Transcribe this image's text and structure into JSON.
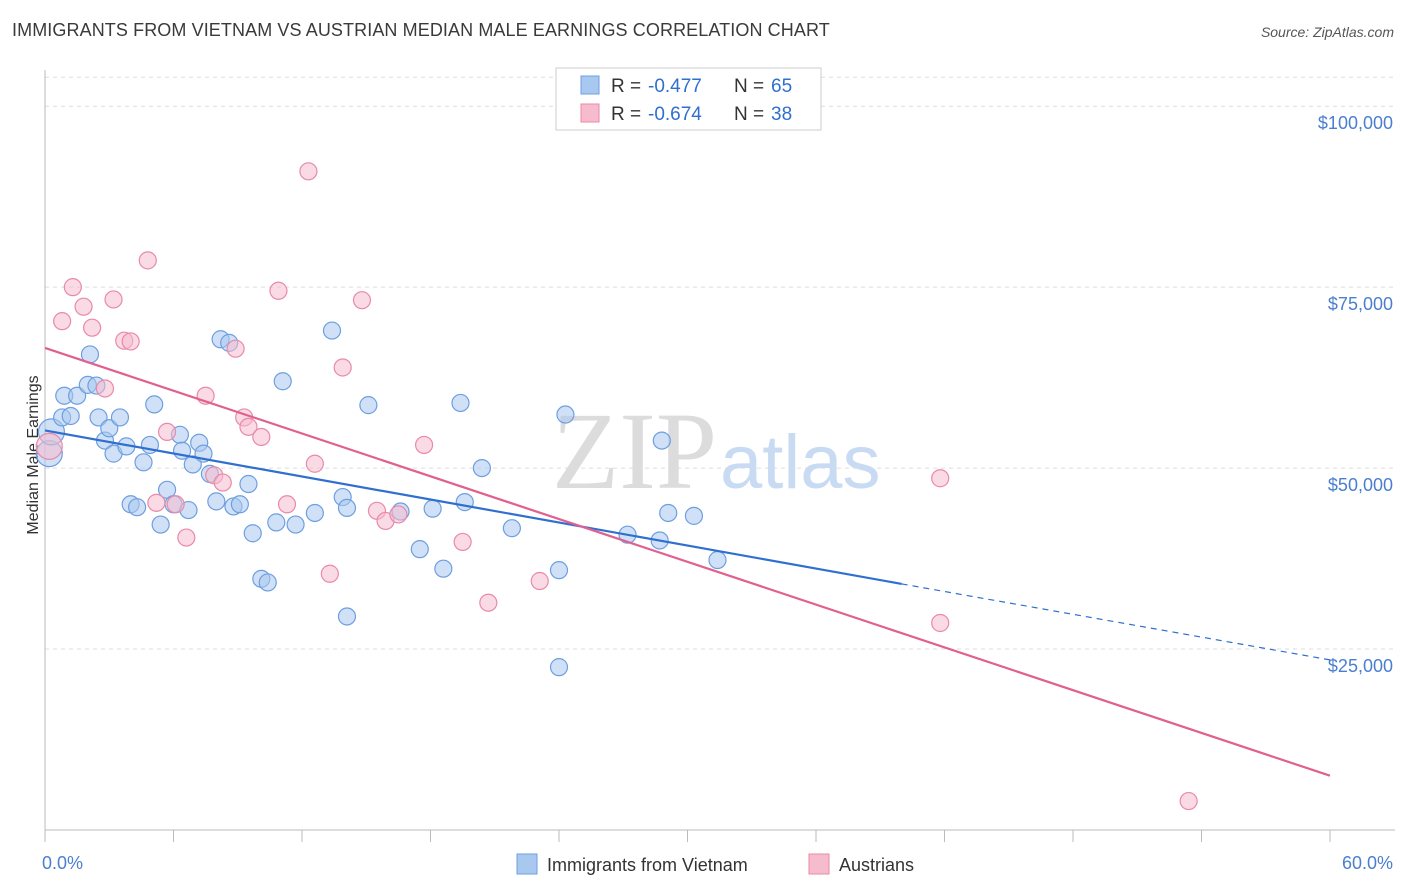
{
  "header": {
    "title": "IMMIGRANTS FROM VIETNAM VS AUSTRIAN MEDIAN MALE EARNINGS CORRELATION CHART",
    "source": "Source: ZipAtlas.com"
  },
  "watermark": {
    "zip": "ZIP",
    "atlas": "atlas"
  },
  "colors": {
    "blue_fill": "#a9c8f0",
    "blue_stroke": "#6d9fe0",
    "blue_line": "#2f6fcf",
    "pink_fill": "#f6bccd",
    "pink_stroke": "#e98aa8",
    "pink_line": "#e0608f",
    "axis_label": "#4a7fd0",
    "grid": "#dddddd"
  },
  "legend": {
    "rows": [
      {
        "r_label": "R = ",
        "r_value": "-0.477",
        "n_label": "N = ",
        "n_value": "65"
      },
      {
        "r_label": "R = ",
        "r_value": "-0.674",
        "n_label": "N = ",
        "n_value": "38"
      }
    ]
  },
  "chart_data": {
    "type": "scatter",
    "xlabel": "",
    "ylabel": "Median Male Earnings",
    "xlim": [
      0,
      60
    ],
    "ylim": [
      0,
      105000
    ],
    "x_tick_labels": [
      "0.0%",
      "60.0%"
    ],
    "y_ticks": [
      25000,
      50000,
      75000,
      100000
    ],
    "y_tick_labels": [
      "$25,000",
      "$50,000",
      "$75,000",
      "$100,000"
    ],
    "grid": true,
    "legend_position": "top-center",
    "series": [
      {
        "name": "Immigrants from Vietnam",
        "color": "blue",
        "r": -0.477,
        "n": 65,
        "trend": {
          "x0": 0,
          "y0": 55200,
          "x1": 40,
          "y1": 34000,
          "dashed_to_x": 60,
          "dashed_to_y": 23500
        },
        "points": [
          [
            0.2,
            52000
          ],
          [
            0.3,
            55000
          ],
          [
            0.8,
            57000
          ],
          [
            0.9,
            60000
          ],
          [
            1.2,
            57200
          ],
          [
            1.5,
            60000
          ],
          [
            2.0,
            61500
          ],
          [
            2.1,
            65700
          ],
          [
            2.4,
            61400
          ],
          [
            2.5,
            57000
          ],
          [
            2.8,
            53800
          ],
          [
            3.0,
            55500
          ],
          [
            3.2,
            52000
          ],
          [
            3.5,
            57000
          ],
          [
            3.8,
            53000
          ],
          [
            4.0,
            45000
          ],
          [
            4.3,
            44600
          ],
          [
            4.6,
            50800
          ],
          [
            4.9,
            53200
          ],
          [
            5.1,
            58800
          ],
          [
            5.4,
            42200
          ],
          [
            5.7,
            47000
          ],
          [
            6.0,
            45000
          ],
          [
            6.3,
            54600
          ],
          [
            6.4,
            52400
          ],
          [
            6.7,
            44200
          ],
          [
            6.9,
            50500
          ],
          [
            7.2,
            53500
          ],
          [
            7.4,
            52000
          ],
          [
            7.7,
            49200
          ],
          [
            8.0,
            45400
          ],
          [
            8.2,
            67800
          ],
          [
            8.6,
            67300
          ],
          [
            8.8,
            44700
          ],
          [
            9.1,
            45000
          ],
          [
            9.5,
            47800
          ],
          [
            9.7,
            41000
          ],
          [
            10.1,
            34700
          ],
          [
            10.4,
            34200
          ],
          [
            10.8,
            42500
          ],
          [
            11.1,
            62000
          ],
          [
            11.7,
            42200
          ],
          [
            12.6,
            43800
          ],
          [
            13.4,
            69000
          ],
          [
            13.9,
            46000
          ],
          [
            14.1,
            44500
          ],
          [
            14.1,
            29500
          ],
          [
            15.1,
            58700
          ],
          [
            16.6,
            44000
          ],
          [
            17.5,
            38800
          ],
          [
            18.1,
            44400
          ],
          [
            18.6,
            36100
          ],
          [
            19.4,
            59000
          ],
          [
            19.6,
            45300
          ],
          [
            20.4,
            50000
          ],
          [
            21.8,
            41700
          ],
          [
            24.0,
            35900
          ],
          [
            24.0,
            22500
          ],
          [
            24.3,
            57400
          ],
          [
            27.2,
            40800
          ],
          [
            28.7,
            40000
          ],
          [
            28.8,
            53800
          ],
          [
            29.1,
            43800
          ],
          [
            30.3,
            43400
          ],
          [
            31.4,
            37300
          ]
        ]
      },
      {
        "name": "Austrians",
        "color": "pink",
        "r": -0.674,
        "n": 38,
        "trend": {
          "x0": 0,
          "y0": 66600,
          "x1": 60,
          "y1": 7500
        },
        "points": [
          [
            0.2,
            53000
          ],
          [
            0.8,
            70300
          ],
          [
            1.3,
            75000
          ],
          [
            1.8,
            72300
          ],
          [
            2.2,
            69400
          ],
          [
            2.8,
            61000
          ],
          [
            3.2,
            73300
          ],
          [
            3.7,
            67600
          ],
          [
            4.0,
            67500
          ],
          [
            4.8,
            78700
          ],
          [
            5.2,
            45200
          ],
          [
            5.7,
            55000
          ],
          [
            6.1,
            45000
          ],
          [
            6.6,
            40400
          ],
          [
            7.5,
            60000
          ],
          [
            7.9,
            49000
          ],
          [
            8.3,
            48000
          ],
          [
            8.9,
            66500
          ],
          [
            9.3,
            57000
          ],
          [
            9.5,
            55700
          ],
          [
            10.1,
            54300
          ],
          [
            10.9,
            74500
          ],
          [
            11.3,
            45000
          ],
          [
            12.3,
            91000
          ],
          [
            12.6,
            50600
          ],
          [
            13.3,
            35400
          ],
          [
            13.9,
            63900
          ],
          [
            14.8,
            73200
          ],
          [
            15.5,
            44100
          ],
          [
            15.9,
            42700
          ],
          [
            16.5,
            43600
          ],
          [
            17.7,
            53200
          ],
          [
            19.5,
            39800
          ],
          [
            20.7,
            31400
          ],
          [
            23.1,
            34400
          ],
          [
            41.8,
            28600
          ],
          [
            41.8,
            48600
          ],
          [
            53.4,
            4000
          ]
        ]
      }
    ]
  },
  "bottom_legend": {
    "items": [
      "Immigrants from Vietnam",
      "Austrians"
    ]
  }
}
